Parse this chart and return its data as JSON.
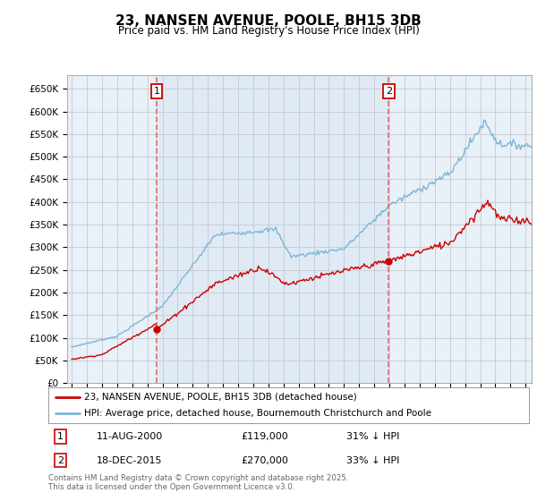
{
  "title": "23, NANSEN AVENUE, POOLE, BH15 3DB",
  "subtitle": "Price paid vs. HM Land Registry's House Price Index (HPI)",
  "legend_line1": "23, NANSEN AVENUE, POOLE, BH15 3DB (detached house)",
  "legend_line2": "HPI: Average price, detached house, Bournemouth Christchurch and Poole",
  "annotation1": {
    "num": "1",
    "date": "11-AUG-2000",
    "price": "£119,000",
    "pct": "31% ↓ HPI",
    "x_year": 2000.625
  },
  "annotation2": {
    "num": "2",
    "date": "18-DEC-2015",
    "price": "£270,000",
    "pct": "33% ↓ HPI",
    "x_year": 2015.958
  },
  "footnote": "Contains HM Land Registry data © Crown copyright and database right 2025.\nThis data is licensed under the Open Government Licence v3.0.",
  "red_color": "#cc0000",
  "blue_color": "#7db5d8",
  "dashed_red": "#e06060",
  "bg_plot": "#e8f0f8",
  "bg_figure": "#ffffff",
  "grid_color": "#c8c8d0",
  "shade_color": "#dce8f4",
  "ylim": [
    0,
    680000
  ],
  "yticks": [
    0,
    50000,
    100000,
    150000,
    200000,
    250000,
    300000,
    350000,
    400000,
    450000,
    500000,
    550000,
    600000,
    650000
  ],
  "xlim_start": 1994.7,
  "xlim_end": 2025.4
}
